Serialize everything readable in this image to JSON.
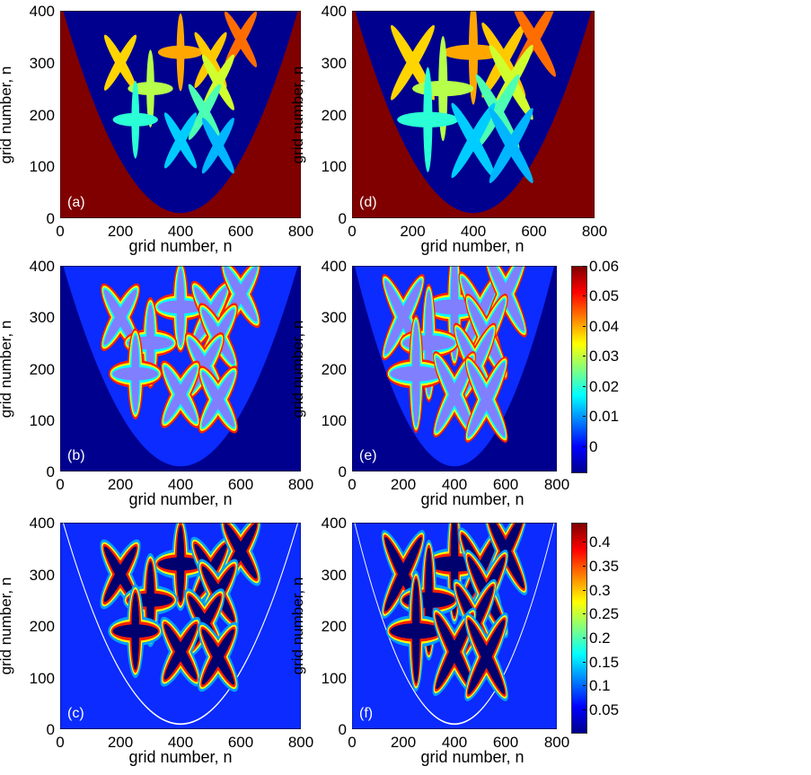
{
  "chart_data": {
    "type": "heatmap",
    "xlabel": "grid number, n",
    "ylabel": "grid number, n",
    "xlim": [
      0,
      800
    ],
    "ylim": [
      0,
      400
    ],
    "xticks": [
      "0",
      "200",
      "400",
      "600",
      "800"
    ],
    "yticks": [
      "0",
      "100",
      "200",
      "300",
      "400"
    ],
    "panels": [
      {
        "id": "a",
        "label": "(a)",
        "style": "phase",
        "growth": 1.0
      },
      {
        "id": "d",
        "label": "(d)",
        "style": "phase",
        "growth": 1.35
      },
      {
        "id": "b",
        "label": "(b)",
        "style": "concentration",
        "growth": 1.0
      },
      {
        "id": "e",
        "label": "(e)",
        "style": "concentration",
        "growth": 1.35
      },
      {
        "id": "c",
        "label": "(c)",
        "style": "temperature",
        "growth": 1.0
      },
      {
        "id": "f",
        "label": "(f)",
        "style": "temperature",
        "growth": 1.35
      }
    ],
    "crystals": [
      {
        "x": 200,
        "y": 300,
        "shape": "x"
      },
      {
        "x": 400,
        "y": 320,
        "shape": "plus"
      },
      {
        "x": 500,
        "y": 305,
        "shape": "x"
      },
      {
        "x": 600,
        "y": 345,
        "shape": "x"
      },
      {
        "x": 300,
        "y": 250,
        "shape": "plus"
      },
      {
        "x": 525,
        "y": 262,
        "shape": "x"
      },
      {
        "x": 250,
        "y": 190,
        "shape": "plus"
      },
      {
        "x": 480,
        "y": 205,
        "shape": "x"
      },
      {
        "x": 400,
        "y": 150,
        "shape": "x"
      },
      {
        "x": 525,
        "y": 140,
        "shape": "x"
      }
    ],
    "colorbars": [
      {
        "range": [
          -0.0085,
          0.06
        ],
        "ticks": [
          "0",
          "0.01",
          "0.02",
          "0.03",
          "0.04",
          "0.05",
          "0.06"
        ],
        "values": [
          0,
          0.01,
          0.02,
          0.03,
          0.04,
          0.05,
          0.06
        ]
      },
      {
        "range": [
          0.003,
          0.44
        ],
        "ticks": [
          "0.05",
          "0.1",
          "0.15",
          "0.2",
          "0.25",
          "0.3",
          "0.35",
          "0.4"
        ],
        "values": [
          0.05,
          0.1,
          0.15,
          0.2,
          0.25,
          0.3,
          0.35,
          0.4
        ]
      }
    ],
    "colors": {
      "navy": "#00008f",
      "blue": "#0b2bff",
      "darkred": "#800000",
      "white": "#ffffff"
    }
  }
}
